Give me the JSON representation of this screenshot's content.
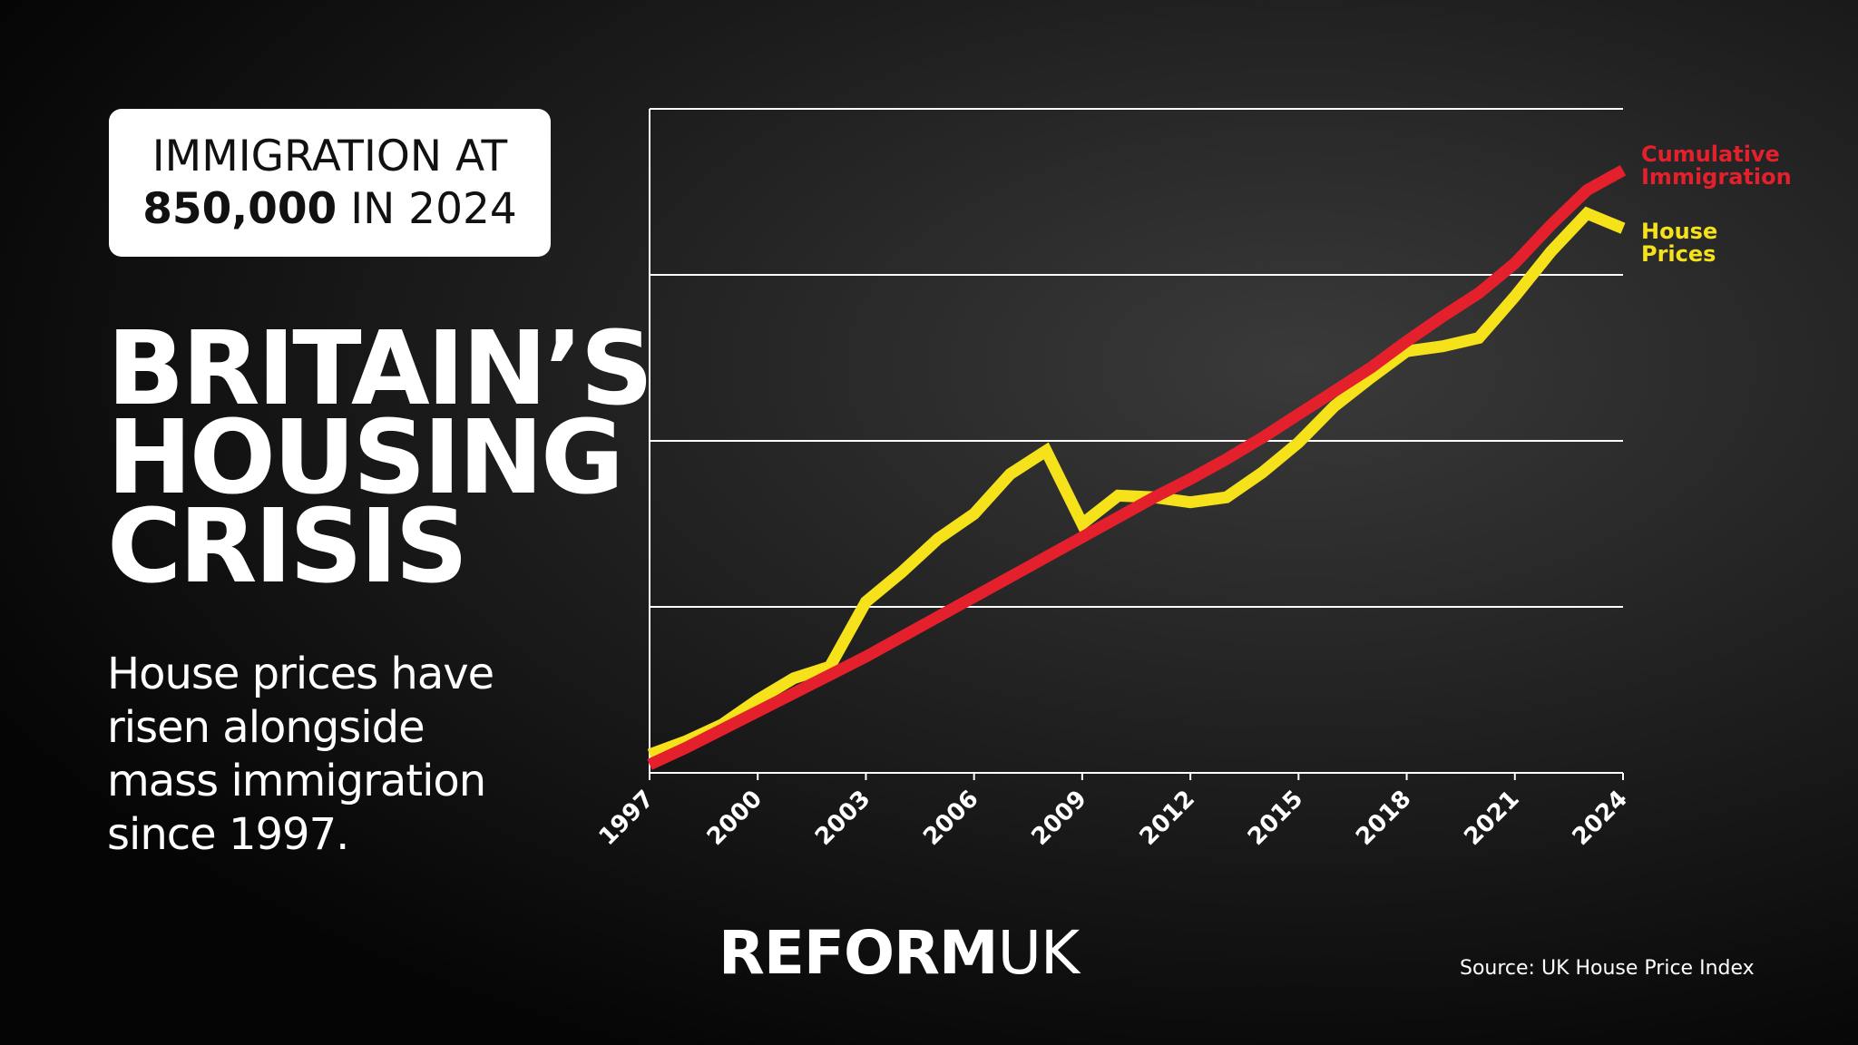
{
  "badge": {
    "line1": "IMMIGRATION AT",
    "highlight": "850,000",
    "line2": "IN 2024"
  },
  "chart_data": {
    "type": "line",
    "title": "BRITAIN’S HOUSING CRISIS",
    "subtitle": "House prices have risen alongside mass immigration since 1997.",
    "x": [
      1997,
      1998,
      1999,
      2000,
      2001,
      2002,
      2003,
      2004,
      2005,
      2006,
      2007,
      2008,
      2009,
      2010,
      2011,
      2012,
      2013,
      2014,
      2015,
      2016,
      2017,
      2018,
      2019,
      2020,
      2021,
      2022,
      2023,
      2024
    ],
    "series": [
      {
        "name": "House Prices",
        "color": "#f5e21a",
        "values": [
          0.11,
          0.19,
          0.29,
          0.44,
          0.57,
          0.64,
          1.03,
          1.21,
          1.41,
          1.56,
          1.8,
          1.94,
          1.5,
          1.67,
          1.66,
          1.63,
          1.66,
          1.81,
          1.99,
          2.21,
          2.38,
          2.54,
          2.57,
          2.62,
          2.87,
          3.14,
          3.37,
          3.28
        ]
      },
      {
        "name": "Cumulative Immigration",
        "color": "#e4202c",
        "values": [
          0.05,
          0.15,
          0.26,
          0.37,
          0.48,
          0.59,
          0.7,
          0.82,
          0.94,
          1.06,
          1.18,
          1.3,
          1.42,
          1.54,
          1.66,
          1.77,
          1.89,
          2.02,
          2.16,
          2.3,
          2.44,
          2.6,
          2.75,
          2.89,
          3.07,
          3.3,
          3.51,
          3.63
        ]
      }
    ],
    "xlim": [
      1997,
      2024
    ],
    "xticks": [
      1997,
      2000,
      2003,
      2006,
      2009,
      2012,
      2015,
      2018,
      2021,
      2024
    ],
    "ylim": [
      0,
      4
    ],
    "yticks": [
      0,
      1,
      2,
      3,
      4
    ],
    "grid": true,
    "source": "Source: UK House Price Index"
  },
  "logo": {
    "main": "REFORM",
    "suffix": "UK"
  }
}
